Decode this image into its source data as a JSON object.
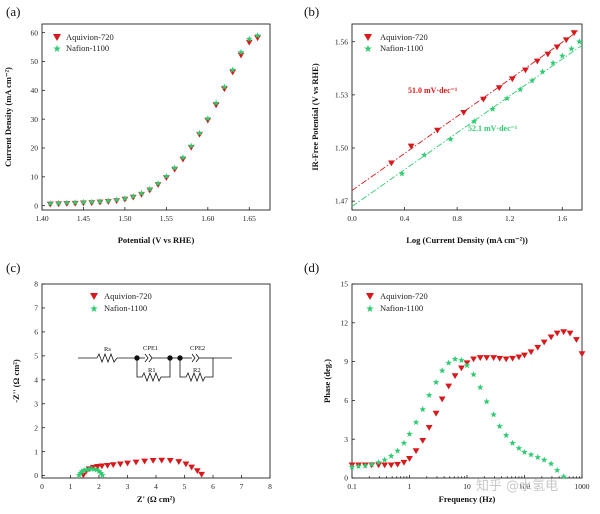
{
  "colors": {
    "red": "#d7191c",
    "green": "#2ecc71",
    "axis": "#222222"
  },
  "watermark": "知乎 @水氢电",
  "chart_data": [
    {
      "id": "a",
      "panel_label": "(a)",
      "type": "scatter",
      "xlabel": "Potential (V vs RHE)",
      "ylabel": "Current Density (mA cm⁻²)",
      "xlim": [
        1.4,
        1.675
      ],
      "ylim": [
        -1.5,
        63
      ],
      "xticks": [
        "1.40",
        "1.45",
        "1.50",
        "1.55",
        "1.60",
        "1.65"
      ],
      "yticks": [
        "0",
        "10",
        "20",
        "30",
        "40",
        "50",
        "60"
      ],
      "legend": [
        "Aquivion-720",
        "Nafion-1100"
      ],
      "series": [
        {
          "name": "Aquivion-720",
          "x": [
            1.41,
            1.42,
            1.43,
            1.44,
            1.45,
            1.46,
            1.47,
            1.48,
            1.49,
            1.5,
            1.51,
            1.52,
            1.53,
            1.54,
            1.55,
            1.56,
            1.57,
            1.58,
            1.59,
            1.6,
            1.61,
            1.62,
            1.63,
            1.64,
            1.65,
            1.66
          ],
          "y": [
            0.5,
            0.6,
            0.7,
            0.8,
            0.9,
            1.0,
            1.2,
            1.4,
            1.7,
            2.2,
            2.9,
            3.9,
            5.4,
            7.3,
            9.7,
            12.6,
            16.1,
            20.2,
            24.7,
            29.6,
            34.9,
            40.5,
            46.3,
            52.2,
            56.6,
            58.2
          ]
        },
        {
          "name": "Nafion-1100",
          "x": [
            1.41,
            1.42,
            1.43,
            1.44,
            1.45,
            1.46,
            1.47,
            1.48,
            1.49,
            1.5,
            1.51,
            1.52,
            1.53,
            1.54,
            1.55,
            1.56,
            1.57,
            1.58,
            1.59,
            1.6,
            1.61,
            1.62,
            1.63,
            1.64,
            1.65,
            1.66
          ],
          "y": [
            0.8,
            0.9,
            1.0,
            1.1,
            1.2,
            1.3,
            1.5,
            1.7,
            2.0,
            2.5,
            3.2,
            4.3,
            5.8,
            7.7,
            10.2,
            13.1,
            16.7,
            20.7,
            25.2,
            30.2,
            35.6,
            41.2,
            47.1,
            53.2,
            57.8,
            59.0
          ]
        }
      ]
    },
    {
      "id": "b",
      "panel_label": "(b)",
      "type": "scatter",
      "xlabel": "Log (Current Density (mA cm⁻²))",
      "ylabel": "IR-Free Potential (V vs RHE)",
      "xlim": [
        0.0,
        1.75
      ],
      "ylim": [
        1.465,
        1.57
      ],
      "xticks": [
        "0.0",
        "0.4",
        "0.8",
        "1.2",
        "1.6"
      ],
      "yticks": [
        "1.47",
        "1.50",
        "1.53",
        "1.56"
      ],
      "legend": [
        "Aquivion-720",
        "Nafion-1100"
      ],
      "annotations": [
        {
          "text": "51.0 mV·dec⁻¹",
          "series": "Aquivion-720"
        },
        {
          "text": "52.1 mV·dec⁻¹",
          "series": "Nafion-1100"
        }
      ],
      "series": [
        {
          "name": "Aquivion-720",
          "x": [
            0.3,
            0.45,
            0.65,
            0.85,
            1.0,
            1.12,
            1.22,
            1.32,
            1.41,
            1.49,
            1.56,
            1.63,
            1.69
          ],
          "y": [
            1.4915,
            1.501,
            1.51,
            1.52,
            1.5275,
            1.534,
            1.539,
            1.544,
            1.549,
            1.553,
            1.557,
            1.561,
            1.565
          ],
          "fit": {
            "x": [
              0.0,
              1.72
            ],
            "y": [
              1.476,
              1.566
            ]
          }
        },
        {
          "name": "Nafion-1100",
          "x": [
            0.38,
            0.55,
            0.75,
            0.93,
            1.07,
            1.18,
            1.28,
            1.37,
            1.45,
            1.53,
            1.6,
            1.67,
            1.73
          ],
          "y": [
            1.4855,
            1.496,
            1.505,
            1.515,
            1.522,
            1.528,
            1.533,
            1.538,
            1.543,
            1.548,
            1.552,
            1.556,
            1.56
          ],
          "fit": {
            "x": [
              0.0,
              1.75
            ],
            "y": [
              1.467,
              1.558
            ]
          }
        }
      ]
    },
    {
      "id": "c",
      "panel_label": "(c)",
      "type": "scatter",
      "xlabel": "Z' (Ω cm²)",
      "ylabel": "-Z'' (Ω cm²)",
      "xlim": [
        0,
        8
      ],
      "ylim": [
        -0.1,
        8
      ],
      "xticks": [
        "0",
        "1",
        "2",
        "3",
        "4",
        "5",
        "6",
        "7",
        "8"
      ],
      "yticks": [
        "0",
        "1",
        "2",
        "3",
        "4",
        "5",
        "6",
        "7",
        "8"
      ],
      "legend": [
        "Aquivion-720",
        "Nafion-1100"
      ],
      "circuit": {
        "labels": [
          "Rs",
          "CPE1",
          "R1",
          "CPE2",
          "R2"
        ]
      },
      "series": [
        {
          "name": "Aquivion-720",
          "x": [
            1.45,
            1.55,
            1.65,
            1.8,
            1.95,
            2.1,
            2.3,
            2.5,
            2.75,
            3.0,
            3.3,
            3.6,
            3.9,
            4.2,
            4.5,
            4.8,
            5.05,
            5.25,
            5.45,
            5.6
          ],
          "y": [
            0.02,
            0.18,
            0.28,
            0.34,
            0.38,
            0.4,
            0.42,
            0.45,
            0.48,
            0.52,
            0.56,
            0.6,
            0.63,
            0.64,
            0.63,
            0.58,
            0.48,
            0.35,
            0.2,
            0.05
          ]
        },
        {
          "name": "Nafion-1100",
          "x": [
            1.3,
            1.35,
            1.4,
            1.48,
            1.56,
            1.65,
            1.74,
            1.83,
            1.92,
            2.0,
            2.07,
            2.12
          ],
          "y": [
            0.02,
            0.1,
            0.17,
            0.22,
            0.25,
            0.27,
            0.28,
            0.27,
            0.24,
            0.18,
            0.1,
            0.02
          ]
        }
      ]
    },
    {
      "id": "d",
      "panel_label": "(d)",
      "type": "scatter",
      "xlabel": "Frequency (Hz)",
      "ylabel": "Phase (deg.)",
      "xscale": "log",
      "xlim": [
        0.1,
        1000
      ],
      "ylim": [
        0,
        15
      ],
      "xticks": [
        "0.1",
        "1",
        "10",
        "100",
        "1000"
      ],
      "yticks": [
        "0",
        "3",
        "6",
        "9",
        "12",
        "15"
      ],
      "legend": [
        "Aquivion-720",
        "Nafion-1100"
      ],
      "series": [
        {
          "name": "Aquivion-720",
          "x": [
            0.1,
            0.13,
            0.17,
            0.22,
            0.29,
            0.37,
            0.48,
            0.62,
            0.8,
            1.0,
            1.3,
            1.7,
            2.2,
            2.9,
            3.7,
            4.8,
            6.2,
            8.0,
            10,
            13,
            17,
            22,
            29,
            37,
            48,
            62,
            80,
            100,
            130,
            170,
            220,
            290,
            370,
            480,
            620,
            800,
            1000
          ],
          "y": [
            1.0,
            1.0,
            1.0,
            1.0,
            1.0,
            1.0,
            1.0,
            1.05,
            1.2,
            1.5,
            2.1,
            2.9,
            3.9,
            5.0,
            6.1,
            7.1,
            7.9,
            8.5,
            8.9,
            9.2,
            9.3,
            9.3,
            9.3,
            9.25,
            9.2,
            9.25,
            9.35,
            9.5,
            9.75,
            10.1,
            10.5,
            10.9,
            11.2,
            11.3,
            11.2,
            10.7,
            9.6
          ]
        },
        {
          "name": "Nafion-1100",
          "x": [
            0.1,
            0.13,
            0.17,
            0.22,
            0.29,
            0.37,
            0.48,
            0.62,
            0.8,
            1.0,
            1.3,
            1.7,
            2.2,
            2.9,
            3.7,
            4.8,
            6.2,
            8.0,
            10,
            13,
            17,
            22,
            29,
            37,
            48,
            62,
            80,
            100,
            130,
            170,
            220,
            290,
            370,
            480
          ],
          "y": [
            0.85,
            0.9,
            0.95,
            1.05,
            1.2,
            1.4,
            1.7,
            2.1,
            2.7,
            3.4,
            4.3,
            5.3,
            6.4,
            7.4,
            8.3,
            8.9,
            9.2,
            9.1,
            8.7,
            8.0,
            7.0,
            5.9,
            4.9,
            4.0,
            3.3,
            2.7,
            2.3,
            2.0,
            1.8,
            1.6,
            1.4,
            1.1,
            0.6,
            0.1
          ]
        }
      ]
    }
  ]
}
